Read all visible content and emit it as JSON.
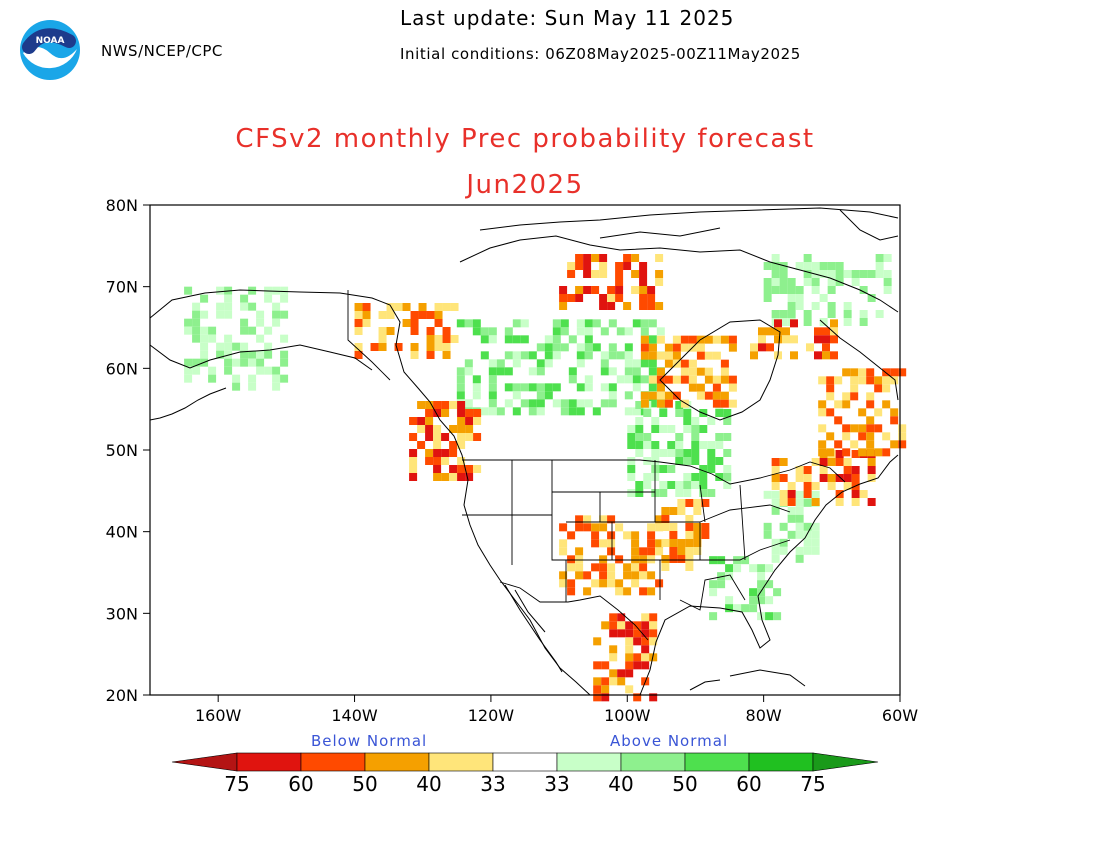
{
  "header": {
    "agency": "NWS/NCEP/CPC",
    "last_update": "Last update: Sun May 11 2025",
    "initial_conditions": "Initial conditions: 06Z08May2025-00Z11May2025",
    "title": "CFSv2 monthly Prec probability forecast",
    "subtitle": "Jun2025",
    "logo_text": "NOAA"
  },
  "map": {
    "lat_labels": [
      "80N",
      "70N",
      "60N",
      "50N",
      "40N",
      "30N",
      "20N"
    ],
    "lon_labels": [
      "160W",
      "140W",
      "120W",
      "100W",
      "80W",
      "60W"
    ],
    "lat_range": [
      20,
      80
    ],
    "lon_range": [
      -170,
      -60
    ],
    "field_regions": [
      {
        "cat": "above",
        "lat": [
          58,
          70
        ],
        "lon": [
          -165,
          -150
        ],
        "level": 1
      },
      {
        "cat": "above",
        "lat": [
          55,
          66
        ],
        "lon": [
          -125,
          -95
        ],
        "level": 2
      },
      {
        "cat": "above",
        "lat": [
          45,
          56
        ],
        "lon": [
          -100,
          -85
        ],
        "level": 2
      },
      {
        "cat": "above",
        "lat": [
          66,
          74
        ],
        "lon": [
          -80,
          -62
        ],
        "level": 1
      },
      {
        "cat": "above",
        "lat": [
          30,
          37
        ],
        "lon": [
          -88,
          -78
        ],
        "level": 2
      },
      {
        "cat": "above",
        "lat": [
          37,
          45
        ],
        "lon": [
          -80,
          -72
        ],
        "level": 1
      },
      {
        "cat": "below",
        "lat": [
          47,
          56
        ],
        "lon": [
          -132,
          -122
        ],
        "level": 3
      },
      {
        "cat": "below",
        "lat": [
          44,
          50
        ],
        "lon": [
          -80,
          -64
        ],
        "level": 3
      },
      {
        "cat": "below",
        "lat": [
          50,
          60
        ],
        "lon": [
          -72,
          -60
        ],
        "level": 2
      },
      {
        "cat": "below",
        "lat": [
          33,
          42
        ],
        "lon": [
          -110,
          -95
        ],
        "level": 2
      },
      {
        "cat": "below",
        "lat": [
          36,
          44
        ],
        "lon": [
          -95,
          -88
        ],
        "level": 2
      },
      {
        "cat": "below",
        "lat": [
          68,
          74
        ],
        "lon": [
          -110,
          -95
        ],
        "level": 3
      },
      {
        "cat": "below",
        "lat": [
          62,
          68
        ],
        "lon": [
          -140,
          -125
        ],
        "level": 2
      },
      {
        "cat": "below",
        "lat": [
          56,
          64
        ],
        "lon": [
          -98,
          -85
        ],
        "level": 2
      },
      {
        "cat": "below",
        "lat": [
          20,
          30
        ],
        "lon": [
          -105,
          -96
        ],
        "level": 3
      },
      {
        "cat": "below",
        "lat": [
          62,
          66
        ],
        "lon": [
          -82,
          -70
        ],
        "level": 3
      }
    ]
  },
  "legend": {
    "below_label": "Below Normal",
    "above_label": "Above Normal",
    "values": [
      "75",
      "60",
      "50",
      "40",
      "33",
      "33",
      "40",
      "50",
      "60",
      "75"
    ],
    "below_colors": [
      "#b41414",
      "#e0140f",
      "#ff4a00",
      "#f5a000",
      "#ffe57a"
    ],
    "above_colors": [
      "#c8ffc8",
      "#8ef08e",
      "#4ee04e",
      "#20c020",
      "#128a12"
    ],
    "arrow_below_color": "#b41414",
    "arrow_above_color": "#1a9a1a"
  }
}
